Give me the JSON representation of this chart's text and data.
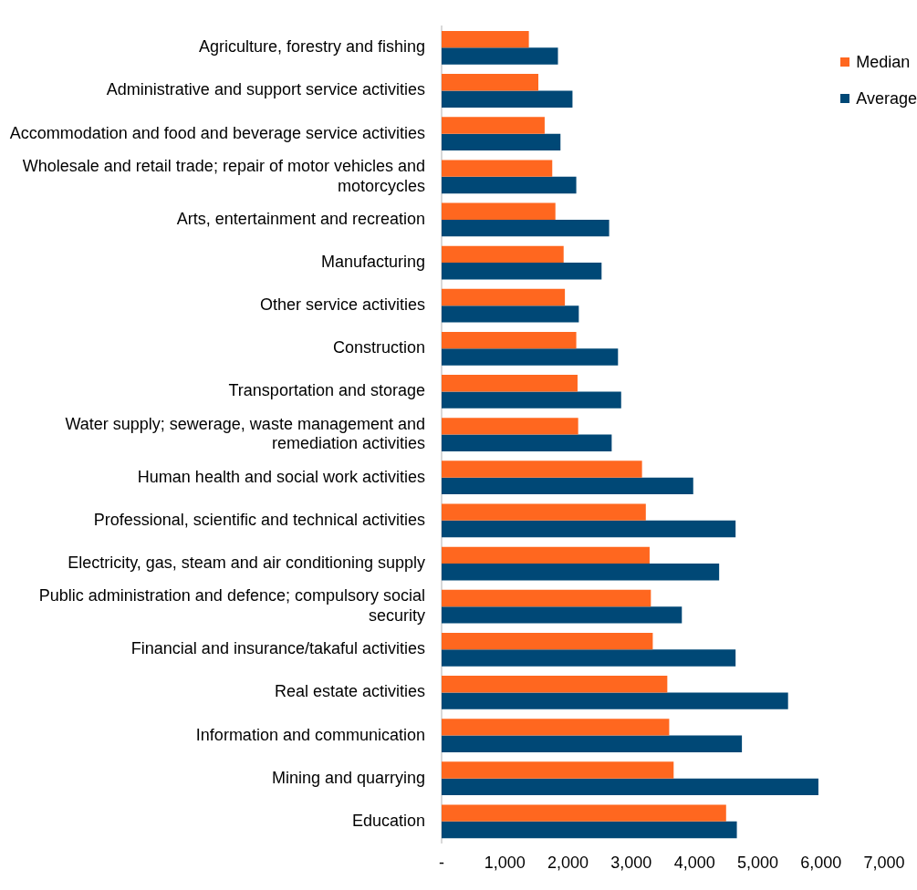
{
  "chart_data": {
    "type": "bar",
    "orientation": "horizontal",
    "legend": "top right",
    "grid": false,
    "categories": [
      "Agriculture, forestry and fishing",
      "Administrative and support service activities",
      "Accommodation and food and beverage service activities",
      "Wholesale and retail trade; repair of motor vehicles and motorcycles",
      "Arts, entertainment and recreation",
      "Manufacturing",
      "Other service activities",
      "Construction",
      "Transportation and storage",
      "Water supply; sewerage, waste management and remediation activities",
      "Human health and social work activities",
      "Professional, scientific and technical activities",
      "Electricity, gas, steam and air conditioning supply",
      "Public administration and defence; compulsory social security",
      "Financial and insurance/takaful activities",
      "Real estate activities",
      "Information and communication",
      "Mining and quarrying",
      "Education"
    ],
    "series": [
      {
        "name": "Median",
        "color": "#ff671f",
        "values": [
          1380,
          1530,
          1630,
          1750,
          1800,
          1930,
          1950,
          2130,
          2150,
          2160,
          3170,
          3230,
          3290,
          3310,
          3340,
          3570,
          3600,
          3670,
          4500
        ]
      },
      {
        "name": "Average",
        "color": "#004876",
        "values": [
          1840,
          2070,
          1880,
          2130,
          2650,
          2530,
          2170,
          2790,
          2840,
          2690,
          3980,
          4650,
          4390,
          3800,
          4650,
          5480,
          4750,
          5960,
          4670
        ]
      }
    ],
    "xlim": [
      0,
      7000
    ],
    "xticks": [
      {
        "value": 0,
        "label": "-"
      },
      {
        "value": 1000,
        "label": "1,000"
      },
      {
        "value": 2000,
        "label": "2,000"
      },
      {
        "value": 3000,
        "label": "3,000"
      },
      {
        "value": 4000,
        "label": "4,000"
      },
      {
        "value": 5000,
        "label": "5,000"
      },
      {
        "value": 6000,
        "label": "6,000"
      },
      {
        "value": 7000,
        "label": "7,000"
      }
    ]
  }
}
